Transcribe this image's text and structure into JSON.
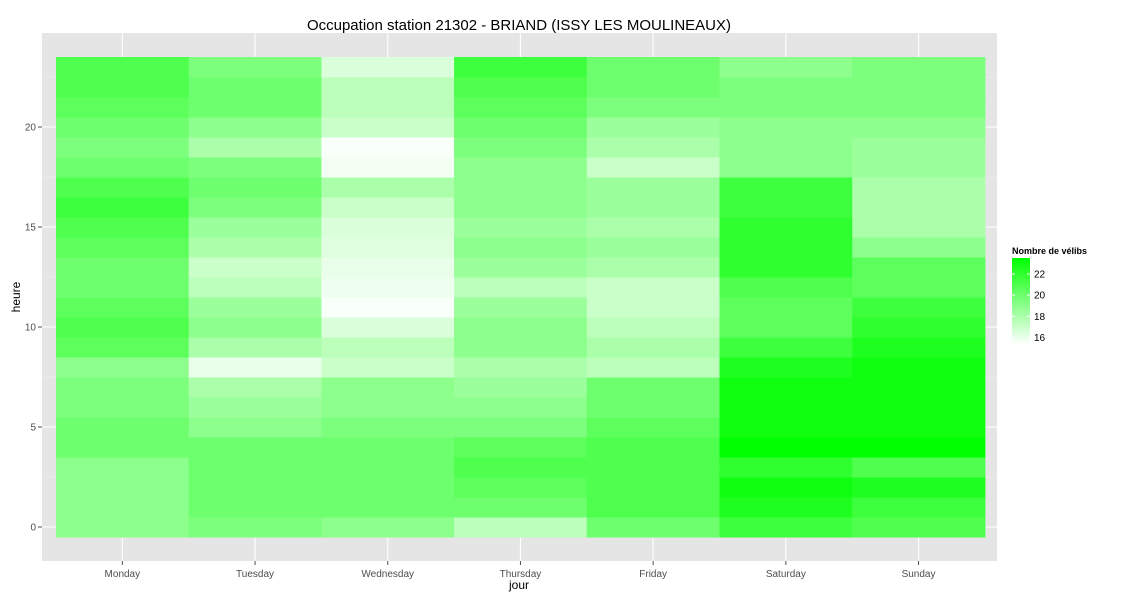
{
  "chart_data": {
    "type": "heatmap",
    "title": "Occupation station 21302 - BRIAND (ISSY LES MOULINEAUX)",
    "xlabel": "jour",
    "ylabel": "heure",
    "x_categories": [
      "Monday",
      "Tuesday",
      "Wednesday",
      "Thursday",
      "Friday",
      "Saturday",
      "Sunday"
    ],
    "y_hours": [
      0,
      1,
      2,
      3,
      4,
      5,
      6,
      7,
      8,
      9,
      10,
      11,
      12,
      13,
      14,
      15,
      16,
      17,
      18,
      19,
      20,
      21,
      22,
      23
    ],
    "y_ticks": [
      0,
      5,
      10,
      15,
      20
    ],
    "ylim": [
      -0.5,
      23.5
    ],
    "grid": true,
    "legend": {
      "title": "Nombre de vélibs",
      "position": "right",
      "ticks": [
        16,
        18,
        20,
        22
      ],
      "min": 15.3,
      "max": 23.5,
      "low_color": "#ffffff",
      "high_color": "#00ff00"
    },
    "values": {
      "Monday": [
        19.0,
        19.0,
        19.0,
        19.0,
        20.0,
        20.0,
        19.5,
        19.5,
        19.0,
        20.5,
        21.0,
        20.5,
        20.0,
        20.0,
        20.5,
        21.0,
        21.5,
        21.0,
        20.0,
        19.5,
        20.0,
        20.5,
        21.0,
        21.0
      ],
      "Tuesday": [
        19.5,
        20.0,
        20.0,
        20.0,
        20.0,
        19.0,
        18.5,
        18.0,
        16.0,
        18.0,
        19.0,
        18.5,
        17.5,
        17.0,
        18.0,
        18.5,
        19.5,
        20.0,
        19.5,
        18.0,
        19.0,
        20.0,
        20.0,
        19.5
      ],
      "Wednesday": [
        19.0,
        20.0,
        20.0,
        20.0,
        20.0,
        19.5,
        19.0,
        19.0,
        17.0,
        17.5,
        16.5,
        15.5,
        15.8,
        16.0,
        16.3,
        16.5,
        17.0,
        18.0,
        15.7,
        15.5,
        17.0,
        17.5,
        17.5,
        16.5
      ],
      "Thursday": [
        17.5,
        20.0,
        20.5,
        21.0,
        20.5,
        19.5,
        19.0,
        18.5,
        18.0,
        19.0,
        19.0,
        18.5,
        17.5,
        18.5,
        19.0,
        18.5,
        19.0,
        19.0,
        19.0,
        19.5,
        20.0,
        20.5,
        21.0,
        21.5
      ],
      "Friday": [
        20.0,
        21.0,
        21.0,
        21.0,
        21.0,
        20.5,
        20.0,
        20.0,
        17.5,
        18.0,
        17.5,
        17.0,
        17.0,
        18.0,
        18.5,
        18.0,
        18.5,
        18.5,
        17.0,
        18.0,
        18.5,
        19.5,
        20.0,
        20.0
      ],
      "Saturday": [
        21.5,
        22.5,
        23.0,
        22.0,
        23.5,
        23.0,
        23.0,
        23.0,
        22.5,
        21.5,
        20.5,
        20.5,
        21.0,
        22.0,
        22.0,
        22.0,
        21.5,
        21.5,
        19.0,
        19.0,
        19.0,
        19.5,
        19.5,
        19.0
      ],
      "Sunday": [
        21.0,
        21.5,
        22.5,
        21.0,
        23.5,
        23.0,
        23.0,
        23.0,
        23.0,
        22.5,
        22.0,
        21.5,
        20.5,
        20.5,
        19.0,
        18.0,
        18.0,
        18.0,
        18.5,
        18.5,
        19.0,
        19.5,
        19.5,
        19.5
      ]
    }
  }
}
